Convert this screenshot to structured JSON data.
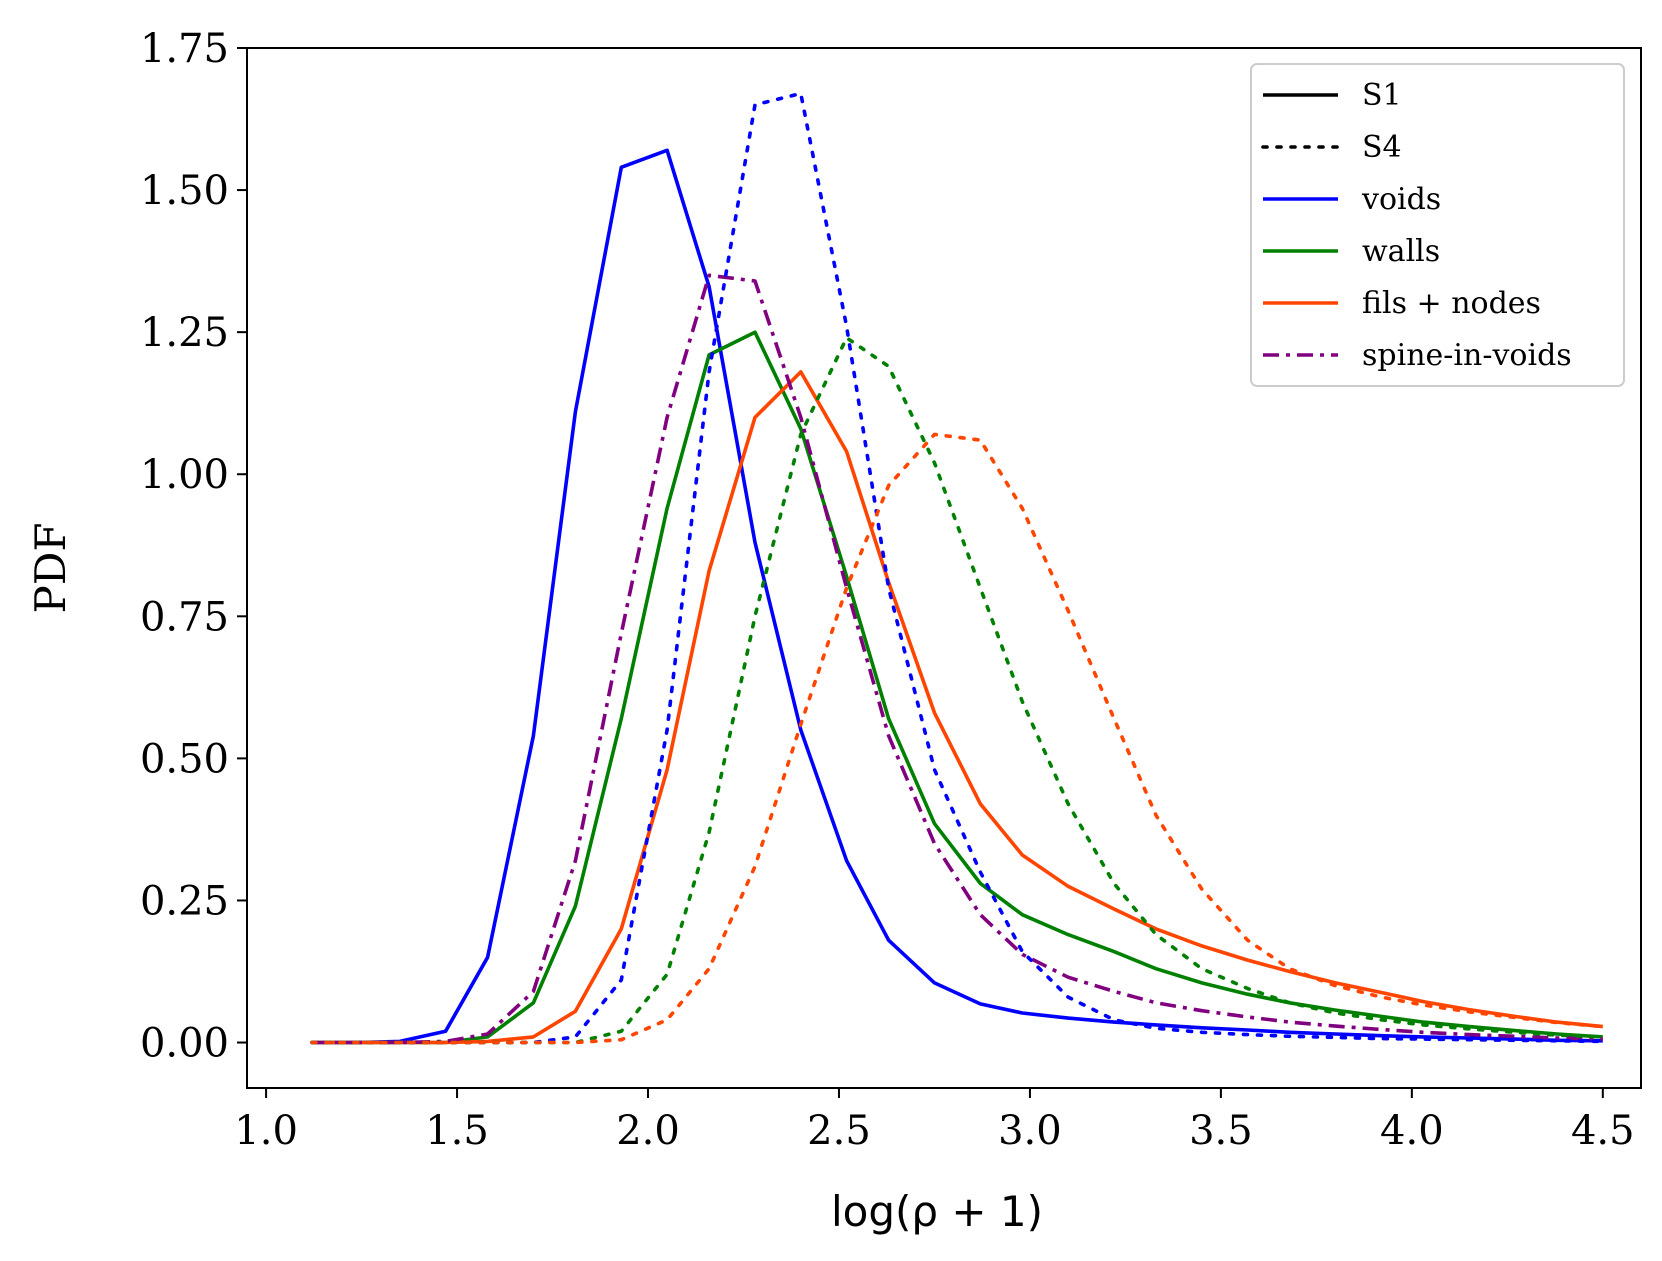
{
  "chart_data": {
    "type": "line",
    "title": "",
    "xlabel": "log(ρ + 1)",
    "ylabel": "PDF",
    "xlim": [
      0.95,
      4.6
    ],
    "ylim": [
      -0.08,
      1.75
    ],
    "xticks": [
      1.0,
      1.5,
      2.0,
      2.5,
      3.0,
      3.5,
      4.0,
      4.5
    ],
    "xtick_labels": [
      "1.0",
      "1.5",
      "2.0",
      "2.5",
      "3.0",
      "3.5",
      "4.0",
      "4.5"
    ],
    "yticks": [
      0.0,
      0.25,
      0.5,
      0.75,
      1.0,
      1.25,
      1.5,
      1.75
    ],
    "ytick_labels": [
      "0.00",
      "0.25",
      "0.50",
      "0.75",
      "1.00",
      "1.25",
      "1.50",
      "1.75"
    ],
    "grid": false,
    "legend_position": "top-right",
    "legend": [
      {
        "label": "S1",
        "color": "#000000",
        "style": "solid"
      },
      {
        "label": "S4",
        "color": "#000000",
        "style": "dotted"
      },
      {
        "label": "voids",
        "color": "#0000ff",
        "style": "solid"
      },
      {
        "label": "walls",
        "color": "#008000",
        "style": "solid"
      },
      {
        "label": "fils + nodes",
        "color": "#ff4500",
        "style": "solid"
      },
      {
        "label": "spine-in-voids",
        "color": "#800080",
        "style": "dashdot"
      }
    ],
    "series": [
      {
        "name": "voids S1",
        "color": "#0000ff",
        "style": "solid",
        "x": [
          1.12,
          1.24,
          1.35,
          1.47,
          1.58,
          1.7,
          1.81,
          1.93,
          2.05,
          2.16,
          2.28,
          2.4,
          2.52,
          2.63,
          2.75,
          2.87,
          2.98,
          3.1,
          3.22,
          3.33,
          3.45,
          3.57,
          3.68,
          3.8,
          3.92,
          4.03,
          4.15,
          4.27,
          4.38,
          4.5
        ],
        "y": [
          0.0,
          0.0,
          0.002,
          0.02,
          0.15,
          0.54,
          1.11,
          1.54,
          1.57,
          1.33,
          0.88,
          0.55,
          0.32,
          0.18,
          0.105,
          0.068,
          0.052,
          0.043,
          0.036,
          0.031,
          0.026,
          0.022,
          0.018,
          0.015,
          0.012,
          0.01,
          0.008,
          0.006,
          0.004,
          0.003
        ]
      },
      {
        "name": "walls S1",
        "color": "#008000",
        "style": "solid",
        "x": [
          1.12,
          1.24,
          1.35,
          1.47,
          1.58,
          1.7,
          1.81,
          1.93,
          2.05,
          2.16,
          2.28,
          2.4,
          2.52,
          2.63,
          2.75,
          2.87,
          2.98,
          3.1,
          3.22,
          3.33,
          3.45,
          3.57,
          3.68,
          3.8,
          3.92,
          4.03,
          4.15,
          4.27,
          4.38,
          4.5
        ],
        "y": [
          0.0,
          0.0,
          0.0,
          0.0,
          0.01,
          0.07,
          0.24,
          0.57,
          0.94,
          1.21,
          1.25,
          1.08,
          0.82,
          0.57,
          0.385,
          0.28,
          0.225,
          0.19,
          0.16,
          0.13,
          0.105,
          0.085,
          0.07,
          0.057,
          0.046,
          0.036,
          0.028,
          0.021,
          0.015,
          0.01
        ]
      },
      {
        "name": "fils + nodes S1",
        "color": "#ff4500",
        "style": "solid",
        "x": [
          1.12,
          1.24,
          1.35,
          1.47,
          1.58,
          1.7,
          1.81,
          1.93,
          2.05,
          2.16,
          2.28,
          2.4,
          2.52,
          2.63,
          2.75,
          2.87,
          2.98,
          3.1,
          3.22,
          3.33,
          3.45,
          3.57,
          3.68,
          3.8,
          3.92,
          4.03,
          4.15,
          4.27,
          4.38,
          4.5
        ],
        "y": [
          0.0,
          0.0,
          0.0,
          0.0,
          0.002,
          0.01,
          0.055,
          0.2,
          0.48,
          0.83,
          1.1,
          1.18,
          1.04,
          0.81,
          0.58,
          0.42,
          0.33,
          0.275,
          0.235,
          0.2,
          0.17,
          0.145,
          0.125,
          0.105,
          0.088,
          0.072,
          0.058,
          0.046,
          0.036,
          0.028
        ]
      },
      {
        "name": "spine-in-voids S1",
        "color": "#800080",
        "style": "dashdot",
        "x": [
          1.12,
          1.24,
          1.35,
          1.47,
          1.58,
          1.7,
          1.81,
          1.93,
          2.05,
          2.16,
          2.28,
          2.4,
          2.52,
          2.63,
          2.75,
          2.87,
          2.98,
          3.1,
          3.22,
          3.33,
          3.45,
          3.57,
          3.68,
          3.8,
          3.92,
          4.03,
          4.15,
          4.27,
          4.38,
          4.5
        ],
        "y": [
          0.0,
          0.0,
          0.0,
          0.002,
          0.015,
          0.09,
          0.32,
          0.72,
          1.1,
          1.35,
          1.34,
          1.1,
          0.8,
          0.54,
          0.35,
          0.225,
          0.155,
          0.115,
          0.09,
          0.07,
          0.056,
          0.045,
          0.036,
          0.029,
          0.023,
          0.018,
          0.014,
          0.011,
          0.008,
          0.006
        ]
      },
      {
        "name": "voids S4",
        "color": "#0000ff",
        "style": "dotted",
        "x": [
          1.12,
          1.24,
          1.35,
          1.47,
          1.58,
          1.7,
          1.81,
          1.93,
          2.05,
          2.16,
          2.28,
          2.4,
          2.52,
          2.63,
          2.75,
          2.87,
          2.98,
          3.1,
          3.22,
          3.33,
          3.45,
          3.57,
          3.68,
          3.8,
          3.92,
          4.03,
          4.15,
          4.27,
          4.38,
          4.5
        ],
        "y": [
          0.0,
          0.0,
          0.0,
          0.0,
          0.0,
          0.0,
          0.01,
          0.11,
          0.55,
          1.18,
          1.65,
          1.67,
          1.26,
          0.8,
          0.48,
          0.3,
          0.16,
          0.08,
          0.04,
          0.025,
          0.018,
          0.014,
          0.011,
          0.009,
          0.007,
          0.006,
          0.005,
          0.004,
          0.003,
          0.002
        ]
      },
      {
        "name": "walls S4",
        "color": "#008000",
        "style": "dotted",
        "x": [
          1.12,
          1.24,
          1.35,
          1.47,
          1.58,
          1.7,
          1.81,
          1.93,
          2.05,
          2.16,
          2.28,
          2.4,
          2.52,
          2.63,
          2.75,
          2.87,
          2.98,
          3.1,
          3.22,
          3.33,
          3.45,
          3.57,
          3.68,
          3.8,
          3.92,
          4.03,
          4.15,
          4.27,
          4.38,
          4.5
        ],
        "y": [
          0.0,
          0.0,
          0.0,
          0.0,
          0.0,
          0.0,
          0.0,
          0.02,
          0.12,
          0.37,
          0.75,
          1.07,
          1.24,
          1.19,
          1.02,
          0.8,
          0.6,
          0.42,
          0.28,
          0.19,
          0.13,
          0.095,
          0.07,
          0.052,
          0.04,
          0.031,
          0.024,
          0.018,
          0.013,
          0.01
        ]
      },
      {
        "name": "fils + nodes S4",
        "color": "#ff4500",
        "style": "dotted",
        "x": [
          1.12,
          1.24,
          1.35,
          1.47,
          1.58,
          1.7,
          1.81,
          1.93,
          2.05,
          2.16,
          2.28,
          2.4,
          2.52,
          2.63,
          2.75,
          2.87,
          2.98,
          3.1,
          3.22,
          3.33,
          3.45,
          3.57,
          3.68,
          3.8,
          3.92,
          4.03,
          4.15,
          4.27,
          4.38,
          4.5
        ],
        "y": [
          0.0,
          0.0,
          0.0,
          0.0,
          0.0,
          0.0,
          0.0,
          0.005,
          0.04,
          0.13,
          0.31,
          0.56,
          0.8,
          0.98,
          1.07,
          1.06,
          0.94,
          0.76,
          0.57,
          0.4,
          0.27,
          0.18,
          0.13,
          0.1,
          0.08,
          0.066,
          0.054,
          0.044,
          0.035,
          0.028
        ]
      }
    ]
  }
}
